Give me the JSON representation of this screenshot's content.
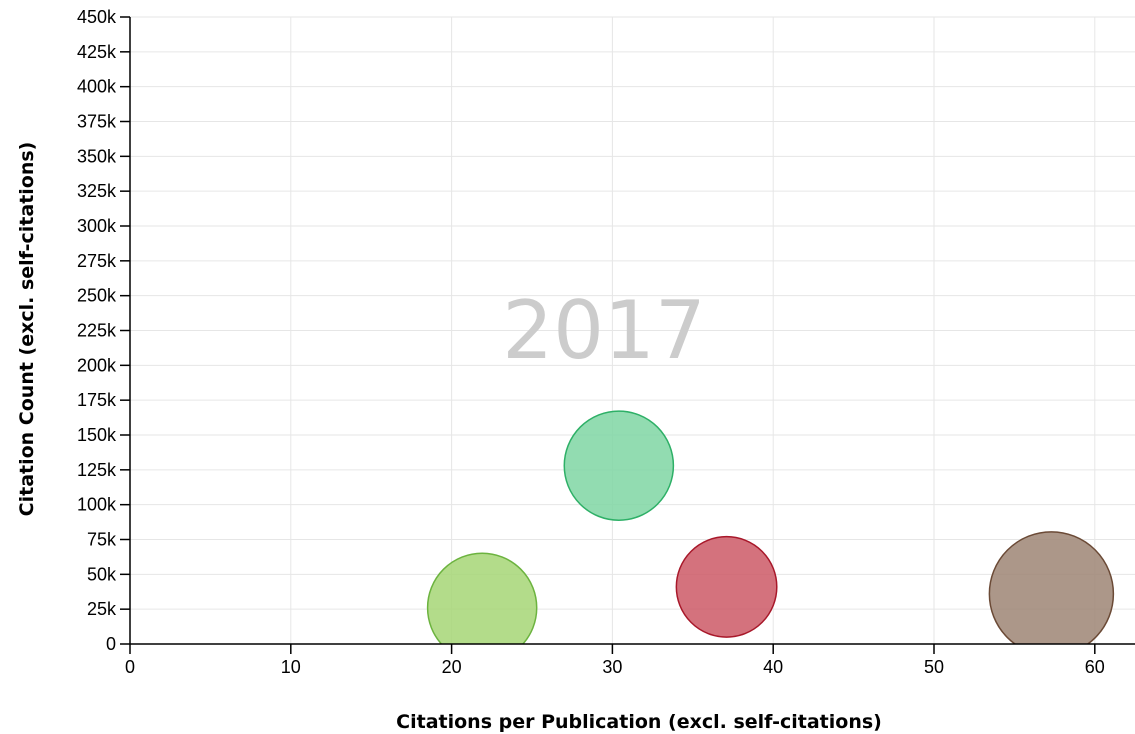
{
  "chart_data": {
    "type": "scatter",
    "subtype": "bubble",
    "watermark": "2017",
    "xlabel": "Citations per Publication (excl. self-citations)",
    "ylabel": "Citation Count (excl. self-citations)",
    "xlim": [
      0,
      62.5
    ],
    "ylim": [
      0,
      450000
    ],
    "x_ticks": [
      0,
      10,
      20,
      30,
      40,
      50,
      60
    ],
    "x_tick_labels": [
      "0",
      "10",
      "20",
      "30",
      "40",
      "50",
      "60"
    ],
    "y_ticks": [
      0,
      25000,
      50000,
      75000,
      100000,
      125000,
      150000,
      175000,
      200000,
      225000,
      250000,
      275000,
      300000,
      325000,
      350000,
      375000,
      400000,
      425000,
      450000
    ],
    "y_tick_labels": [
      "0",
      "25k",
      "50k",
      "75k",
      "100k",
      "125k",
      "150k",
      "175k",
      "200k",
      "225k",
      "250k",
      "275k",
      "300k",
      "325k",
      "350k",
      "375k",
      "400k",
      "425k",
      "450k"
    ],
    "grid": true,
    "series": [
      {
        "x": 21.9,
        "y": 26000,
        "relative_size": 0.88,
        "fill": "#a6d676",
        "stroke": "#6cb33f"
      },
      {
        "x": 30.4,
        "y": 128000,
        "relative_size": 0.88,
        "fill": "#7fd6a3",
        "stroke": "#2eb067"
      },
      {
        "x": 37.1,
        "y": 41000,
        "relative_size": 0.81,
        "fill": "#cc5966",
        "stroke": "#a8182a"
      },
      {
        "x": 57.3,
        "y": 36000,
        "relative_size": 1.0,
        "fill": "#9e8574",
        "stroke": "#6b4a36"
      }
    ]
  }
}
